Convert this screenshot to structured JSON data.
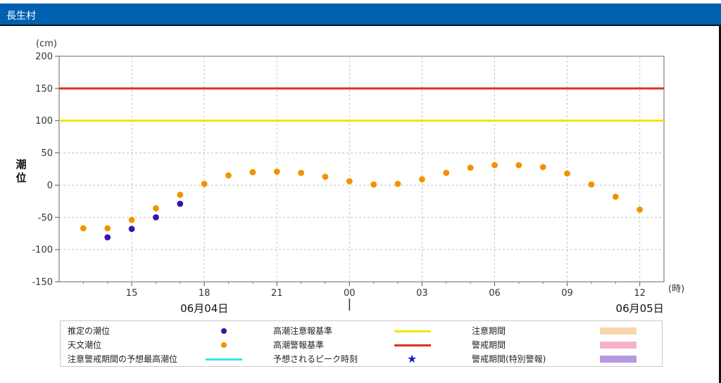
{
  "header": {
    "title": "長生村"
  },
  "colors": {
    "header_bg": "#0061b0",
    "estimated": "#3a14a8",
    "astronomical": "#f39200",
    "caution_line": "#f2e600",
    "warning_line": "#d9341c",
    "forecast_max": "#3fe0ef",
    "peak_star": "#1a1acc",
    "caution_period": "#fad6ad",
    "warning_period": "#f9b0cb",
    "special_warning_period": "#b59ae0"
  },
  "chart_data": {
    "type": "scatter",
    "y_unit": "(cm)",
    "ylabel": "潮位",
    "x_unit": "(時)",
    "ylim": [
      -150,
      200
    ],
    "yticks": [
      200,
      150,
      100,
      50,
      0,
      -50,
      -100,
      -150
    ],
    "xlim": [
      12,
      37
    ],
    "xticks": [
      {
        "x": 15,
        "label": "15"
      },
      {
        "x": 18,
        "label": "18"
      },
      {
        "x": 21,
        "label": "21"
      },
      {
        "x": 24,
        "label": "00"
      },
      {
        "x": 27,
        "label": "03"
      },
      {
        "x": 30,
        "label": "06"
      },
      {
        "x": 33,
        "label": "09"
      },
      {
        "x": 36,
        "label": "12"
      }
    ],
    "date_labels": [
      {
        "x": 18,
        "label": "06月04日"
      },
      {
        "x": 36,
        "label": "06月05日"
      }
    ],
    "grid": true,
    "reference_lines": [
      {
        "name": "高潮警報基準",
        "y": 150,
        "color": "#d9341c"
      },
      {
        "name": "高潮注意報基準",
        "y": 100,
        "color": "#f2e600"
      }
    ],
    "series": [
      {
        "name": "推定の潮位",
        "color": "#3a14a8",
        "points": [
          [
            14,
            -81
          ],
          [
            15,
            -68
          ],
          [
            16,
            -50
          ],
          [
            17,
            -29
          ]
        ]
      },
      {
        "name": "天文潮位",
        "color": "#f39200",
        "points": [
          [
            13,
            -67
          ],
          [
            14,
            -67
          ],
          [
            15,
            -54
          ],
          [
            16,
            -36
          ],
          [
            17,
            -15
          ],
          [
            18,
            2
          ],
          [
            19,
            15
          ],
          [
            20,
            20
          ],
          [
            21,
            21
          ],
          [
            22,
            19
          ],
          [
            23,
            13
          ],
          [
            24,
            6
          ],
          [
            25,
            1
          ],
          [
            26,
            2
          ],
          [
            27,
            9
          ],
          [
            28,
            19
          ],
          [
            29,
            27
          ],
          [
            30,
            31
          ],
          [
            31,
            31
          ],
          [
            32,
            28
          ],
          [
            33,
            18
          ],
          [
            34,
            1
          ],
          [
            35,
            -18
          ],
          [
            36,
            -38
          ]
        ]
      }
    ]
  },
  "legend": [
    {
      "label": "推定の潮位",
      "symbol": "dot",
      "color": "#3a14a8"
    },
    {
      "label": "高潮注意報基準",
      "symbol": "line",
      "color": "#f2e600"
    },
    {
      "label": "注意期間",
      "symbol": "box",
      "color": "#fad6ad"
    },
    {
      "label": "天文潮位",
      "symbol": "dot",
      "color": "#f39200"
    },
    {
      "label": "高潮警報基準",
      "symbol": "line",
      "color": "#d9341c"
    },
    {
      "label": "警戒期間",
      "symbol": "box",
      "color": "#f9b0cb"
    },
    {
      "label": "注意警戒期間の予想最高潮位",
      "symbol": "line",
      "color": "#3fe0ef"
    },
    {
      "label": "予想されるピーク時刻",
      "symbol": "star",
      "color": "#1a1acc"
    },
    {
      "label": "警戒期間(特別警報)",
      "symbol": "box",
      "color": "#b59ae0"
    }
  ]
}
